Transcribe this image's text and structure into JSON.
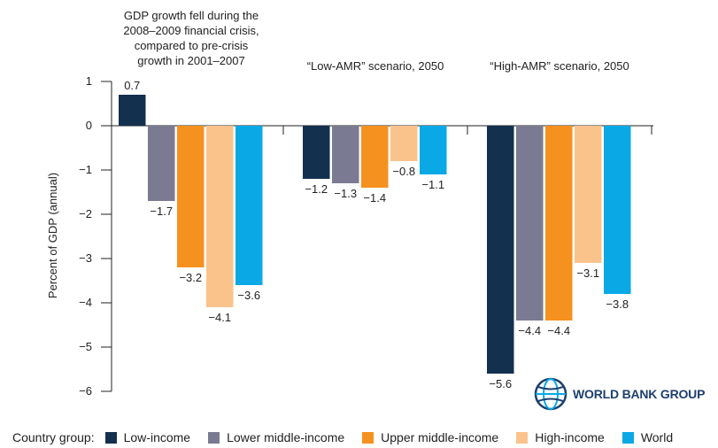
{
  "chart_data": {
    "type": "bar",
    "ylabel": "Percent of GDP (annual)",
    "ylim": [
      -6,
      1
    ],
    "yticks": [
      1,
      0,
      -1,
      -2,
      -3,
      -4,
      -5,
      -6
    ],
    "ytick_labels": [
      "1",
      "0",
      "−1",
      "−2",
      "−3",
      "−4",
      "−5",
      "−6"
    ],
    "grid": false,
    "legend_position": "bottom",
    "legend_title": "Country group:",
    "groups": [
      {
        "title_lines": [
          "GDP growth fell during the",
          "2008–2009 financial crisis,",
          "compared to pre-crisis",
          "growth in 2001–2007"
        ]
      },
      {
        "title_lines": [
          "“Low-AMR” scenario, 2050"
        ]
      },
      {
        "title_lines": [
          "“High-AMR” scenario, 2050"
        ]
      }
    ],
    "series": [
      {
        "name": "Low-income",
        "color": "#13304f",
        "values": [
          0.7,
          -1.2,
          -5.6
        ],
        "labels": [
          "0.7",
          "−1.2",
          "−5.6"
        ]
      },
      {
        "name": "Lower middle-income",
        "color": "#7a7a92",
        "values": [
          -1.7,
          -1.3,
          -4.4
        ],
        "labels": [
          "−1.7",
          "−1.3",
          "−4.4"
        ]
      },
      {
        "name": "Upper middle-income",
        "color": "#f5911e",
        "values": [
          -3.2,
          -1.4,
          -4.4
        ],
        "labels": [
          "−3.2",
          "−1.4",
          "−4.4"
        ]
      },
      {
        "name": "High-income",
        "color": "#fbc38c",
        "values": [
          -4.1,
          -0.8,
          -3.1
        ],
        "labels": [
          "−4.1",
          "−0.8",
          "−3.1"
        ]
      },
      {
        "name": "World",
        "color": "#0aa9e6",
        "values": [
          -3.6,
          -1.1,
          -3.8
        ],
        "labels": [
          "−3.6",
          "−1.1",
          "−3.8"
        ]
      }
    ]
  },
  "logo": {
    "text": "WORLD BANK GROUP",
    "icon": "globe-icon",
    "color": "#1c3f6e"
  }
}
